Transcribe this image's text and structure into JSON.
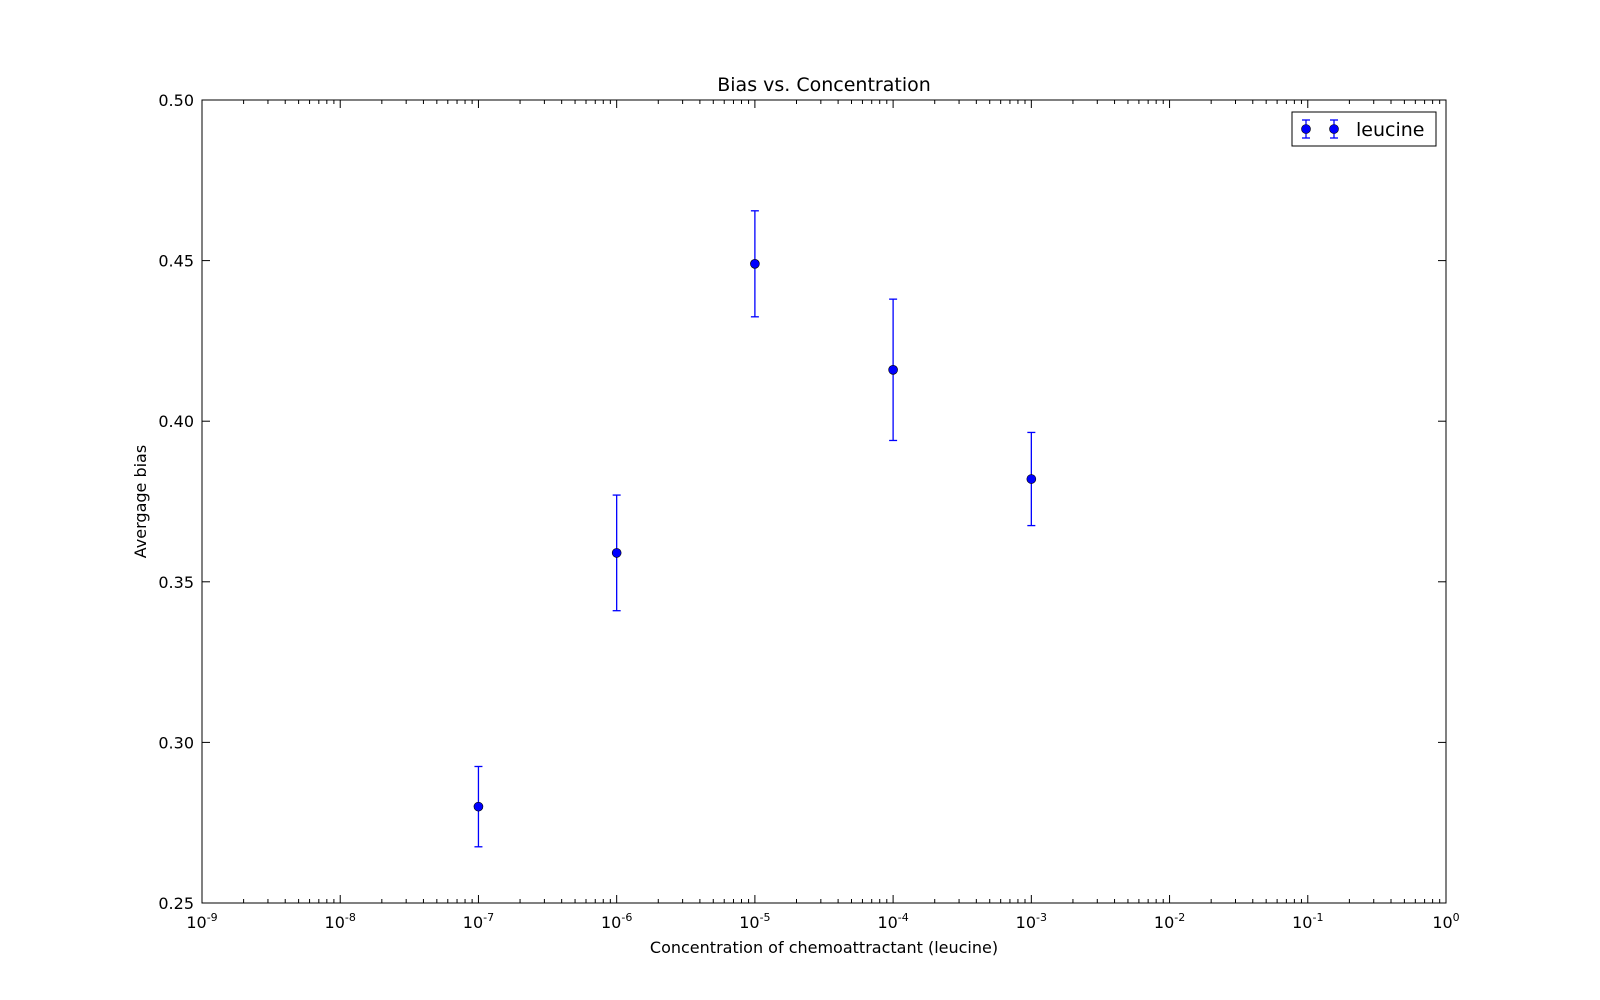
{
  "chart_data": {
    "type": "scatter",
    "title": "Bias vs. Concentration",
    "xlabel": "Concentration of chemoattractant (leucine)",
    "ylabel": "Avergage bias",
    "xscale": "log",
    "xlim": [
      1e-09,
      1
    ],
    "ylim": [
      0.25,
      0.5
    ],
    "x_ticks": [
      {
        "base": "10",
        "exp": "-9"
      },
      {
        "base": "10",
        "exp": "-8"
      },
      {
        "base": "10",
        "exp": "-7"
      },
      {
        "base": "10",
        "exp": "-6"
      },
      {
        "base": "10",
        "exp": "-5"
      },
      {
        "base": "10",
        "exp": "-4"
      },
      {
        "base": "10",
        "exp": "-3"
      },
      {
        "base": "10",
        "exp": "-2"
      },
      {
        "base": "10",
        "exp": "-1"
      },
      {
        "base": "10",
        "exp": "0"
      }
    ],
    "y_ticks": [
      "0.25",
      "0.30",
      "0.35",
      "0.40",
      "0.45",
      "0.50"
    ],
    "grid": false,
    "legend_position": "top-right",
    "series": [
      {
        "name": "leucine",
        "color": "#0000ff",
        "points": [
          {
            "x": 1e-07,
            "y": 0.28,
            "err": 0.0125
          },
          {
            "x": 1e-06,
            "y": 0.359,
            "err": 0.018
          },
          {
            "x": 1e-05,
            "y": 0.449,
            "err": 0.0165
          },
          {
            "x": 0.0001,
            "y": 0.416,
            "err": 0.022
          },
          {
            "x": 0.001,
            "y": 0.382,
            "err": 0.0145
          }
        ]
      }
    ]
  }
}
